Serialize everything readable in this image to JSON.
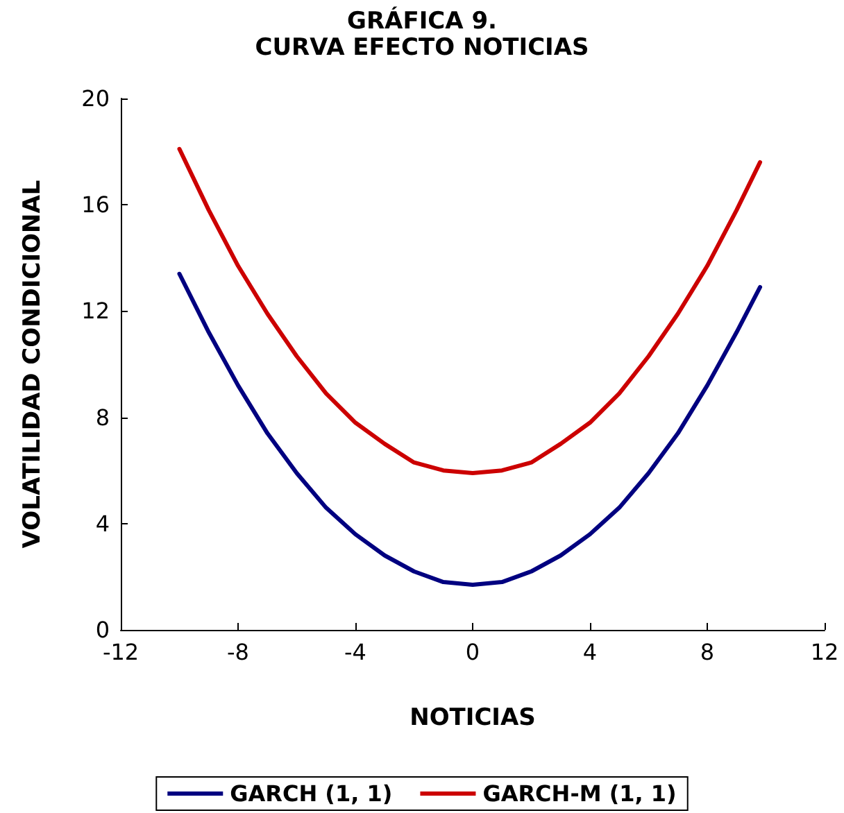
{
  "chart_data": {
    "type": "line",
    "title": "GRÁFICA 9.",
    "subtitle": "CURVA EFECTO NOTICIAS",
    "xlabel": "NOTICIAS",
    "ylabel": "VOLATILIDAD CONDICIONAL",
    "x": [
      -10,
      -9,
      -8,
      -7,
      -6,
      -5,
      -4,
      -3,
      -2,
      -1,
      0,
      1,
      2,
      3,
      4,
      5,
      6,
      7,
      8,
      9,
      9.8
    ],
    "series": [
      {
        "name": "GARCH (1, 1)",
        "color": "#000080",
        "values": [
          13.4,
          11.2,
          9.2,
          7.4,
          5.9,
          4.6,
          3.6,
          2.8,
          2.2,
          1.8,
          1.7,
          1.8,
          2.2,
          2.8,
          3.6,
          4.6,
          5.9,
          7.4,
          9.2,
          11.2,
          12.9
        ]
      },
      {
        "name": "GARCH-M (1, 1)",
        "color": "#cc0000",
        "values": [
          18.1,
          15.8,
          13.7,
          11.9,
          10.3,
          8.9,
          7.8,
          7.0,
          6.3,
          6.0,
          5.9,
          6.0,
          6.3,
          7.0,
          7.8,
          8.9,
          10.3,
          11.9,
          13.7,
          15.8,
          17.6
        ]
      }
    ],
    "xlim": [
      -12,
      12
    ],
    "xticks": [
      -12,
      -8,
      -4,
      0,
      4,
      8,
      12
    ],
    "ylim": [
      0,
      20
    ],
    "yticks": [
      0,
      4,
      8,
      12,
      16,
      20
    ],
    "grid": false,
    "legend": "bottom",
    "marker": "none",
    "line_style": "solid"
  }
}
